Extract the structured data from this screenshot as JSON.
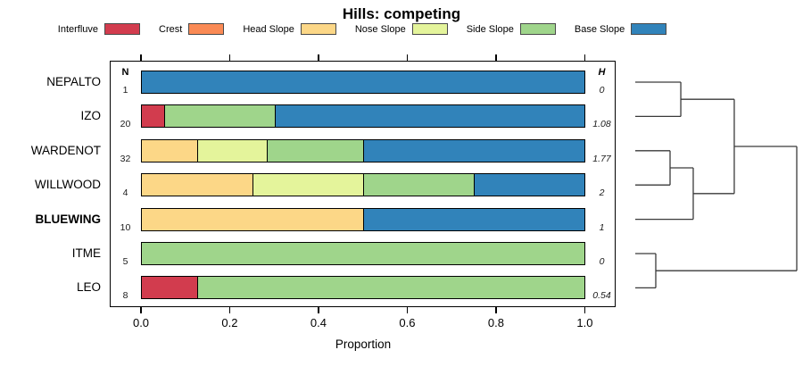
{
  "title": "Hills: competing",
  "columns": {
    "n_header": "N",
    "h_header": "H"
  },
  "colors": {
    "Interfluve": "#d23c4e",
    "Crest": "#fa8a55",
    "Head Slope": "#fcd787",
    "Nose Slope": "#e4f49b",
    "Side Slope": "#9fd58b",
    "Base Slope": "#3183ba"
  },
  "legend": [
    {
      "label": "Interfluve"
    },
    {
      "label": "Crest"
    },
    {
      "label": "Head Slope"
    },
    {
      "label": "Nose Slope"
    },
    {
      "label": "Side Slope"
    },
    {
      "label": "Base Slope"
    }
  ],
  "x_ticks": [
    {
      "value": 0.0,
      "label": "0.0"
    },
    {
      "value": 0.2,
      "label": "0.2"
    },
    {
      "value": 0.4,
      "label": "0.4"
    },
    {
      "value": 0.6,
      "label": "0.6"
    },
    {
      "value": 0.8,
      "label": "0.8"
    },
    {
      "value": 1.0,
      "label": "1.0"
    }
  ],
  "chart_data": {
    "type": "bar",
    "subtype": "horizontal-stacked-proportion",
    "title": "Hills: competing",
    "xlabel": "Proportion",
    "ylabel": "",
    "xlim": [
      0,
      1
    ],
    "grid": false,
    "legend_position": "top",
    "categories": [
      "NEPALTO",
      "IZO",
      "WARDENOT",
      "WILLWOOD",
      "BLUEWING",
      "ITME",
      "LEO"
    ],
    "series_names": [
      "Interfluve",
      "Crest",
      "Head Slope",
      "Nose Slope",
      "Side Slope",
      "Base Slope"
    ],
    "rows": [
      {
        "label": "NEPALTO",
        "bold": false,
        "n": "1",
        "h": "0",
        "segments": [
          {
            "name": "Base Slope",
            "value": 1.0
          }
        ]
      },
      {
        "label": "IZO",
        "bold": false,
        "n": "20",
        "h": "1.08",
        "segments": [
          {
            "name": "Interfluve",
            "value": 0.05
          },
          {
            "name": "Side Slope",
            "value": 0.25
          },
          {
            "name": "Base Slope",
            "value": 0.7
          }
        ]
      },
      {
        "label": "WARDENOT",
        "bold": false,
        "n": "32",
        "h": "1.77",
        "segments": [
          {
            "name": "Head Slope",
            "value": 0.125
          },
          {
            "name": "Nose Slope",
            "value": 0.15625
          },
          {
            "name": "Side Slope",
            "value": 0.21875
          },
          {
            "name": "Base Slope",
            "value": 0.5
          }
        ]
      },
      {
        "label": "WILLWOOD",
        "bold": false,
        "n": "4",
        "h": "2",
        "segments": [
          {
            "name": "Head Slope",
            "value": 0.25
          },
          {
            "name": "Nose Slope",
            "value": 0.25
          },
          {
            "name": "Side Slope",
            "value": 0.25
          },
          {
            "name": "Base Slope",
            "value": 0.25
          }
        ]
      },
      {
        "label": "BLUEWING",
        "bold": true,
        "n": "10",
        "h": "1",
        "segments": [
          {
            "name": "Head Slope",
            "value": 0.5
          },
          {
            "name": "Base Slope",
            "value": 0.5
          }
        ]
      },
      {
        "label": "ITME",
        "bold": false,
        "n": "5",
        "h": "0",
        "segments": [
          {
            "name": "Side Slope",
            "value": 1.0
          }
        ]
      },
      {
        "label": "LEO",
        "bold": false,
        "n": "8",
        "h": "0.54",
        "segments": [
          {
            "name": "Interfluve",
            "value": 0.125
          },
          {
            "name": "Side Slope",
            "value": 0.875
          }
        ]
      }
    ]
  },
  "dendrogram": {
    "leaf_order": [
      "NEPALTO",
      "IZO",
      "WARDENOT",
      "WILLWOOD",
      "BLUEWING",
      "ITME",
      "LEO"
    ],
    "tree": {
      "h": 1.0,
      "children": [
        {
          "h": 0.613,
          "children": [
            {
              "h": 0.282,
              "children": [
                {
                  "leaf": 0
                },
                {
                  "leaf": 1
                }
              ]
            },
            {
              "h": 0.359,
              "children": [
                {
                  "h": 0.2155,
                  "children": [
                    {
                      "leaf": 2
                    },
                    {
                      "leaf": 3
                    }
                  ]
                },
                {
                  "leaf": 4
                }
              ]
            }
          ]
        },
        {
          "h": 0.127,
          "children": [
            {
              "leaf": 5
            },
            {
              "leaf": 6
            }
          ]
        }
      ]
    }
  }
}
